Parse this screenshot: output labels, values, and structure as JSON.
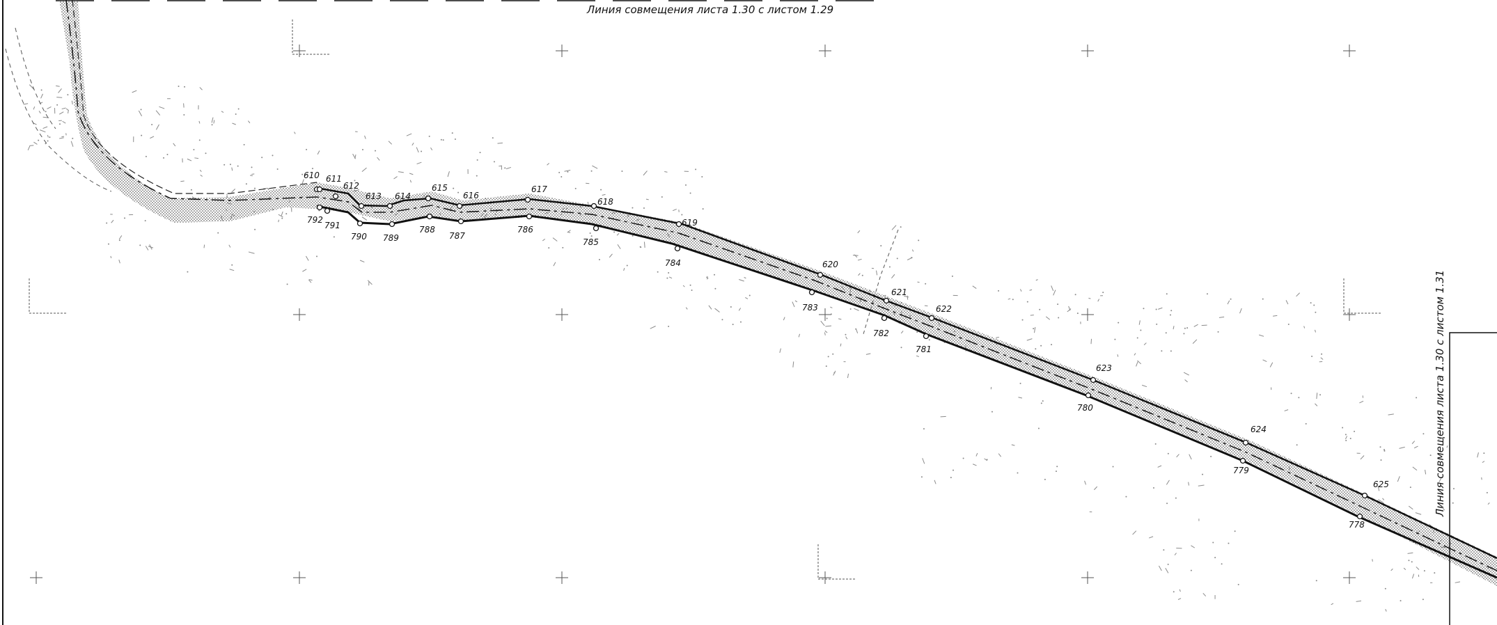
{
  "sheet": {
    "match_line_top": "Линия совмещения листа 1.30 с листом 1.29",
    "match_line_right": "Линия совмещения листа 1.30 с листом 1.31"
  },
  "upper_points": [
    "610",
    "611",
    "612",
    "613",
    "614",
    "615",
    "616",
    "617",
    "618",
    "619",
    "620",
    "621",
    "622",
    "623",
    "624",
    "625"
  ],
  "lower_points": [
    "792",
    "791",
    "790",
    "789",
    "788",
    "787",
    "786",
    "785",
    "784",
    "783",
    "782",
    "781",
    "780",
    "779",
    "778"
  ],
  "colors": {
    "ink": "#111111",
    "hatch": "#555555",
    "scatter": "#8a8a8a"
  }
}
